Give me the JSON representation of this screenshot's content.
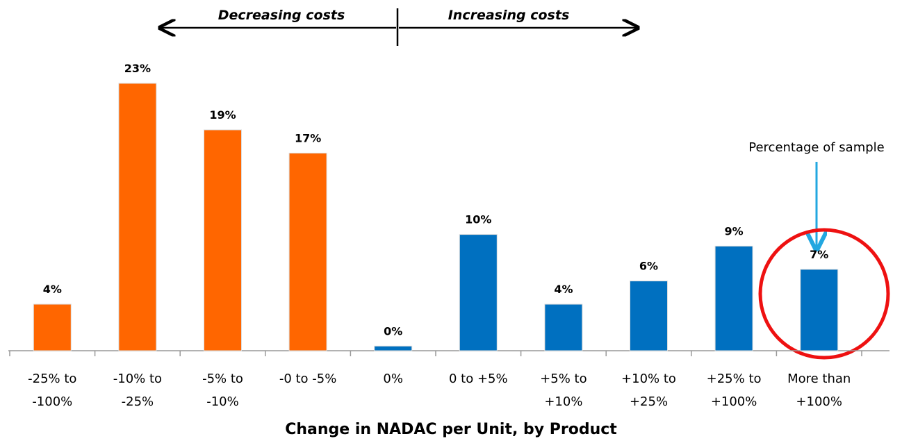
{
  "chart_data": {
    "type": "bar",
    "categories": [
      [
        "-25% to",
        "-100%"
      ],
      [
        "-10% to",
        "-25%"
      ],
      [
        "-5% to",
        "-10%"
      ],
      [
        "-0 to -5%"
      ],
      [
        "0%"
      ],
      [
        "0 to +5%"
      ],
      [
        "+5% to",
        "+10%"
      ],
      [
        "+10% to",
        "+25%"
      ],
      [
        "+25% to",
        "+100%"
      ],
      [
        "More than",
        "+100%"
      ]
    ],
    "values": [
      4,
      23,
      19,
      17,
      0.4,
      10,
      4,
      6,
      9,
      7
    ],
    "value_labels": [
      "4%",
      "23%",
      "19%",
      "17%",
      "0%",
      "10%",
      "4%",
      "6%",
      "9%",
      "7%"
    ],
    "colors": [
      "#ff6600",
      "#ff6600",
      "#ff6600",
      "#ff6600",
      "#0070c0",
      "#0070c0",
      "#0070c0",
      "#0070c0",
      "#0070c0",
      "#0070c0"
    ],
    "x_label": "Change in NADAC per Unit, by Product",
    "annotations": [
      "Decreasing costs",
      "Increasing costs",
      "Percentage of sample"
    ]
  }
}
